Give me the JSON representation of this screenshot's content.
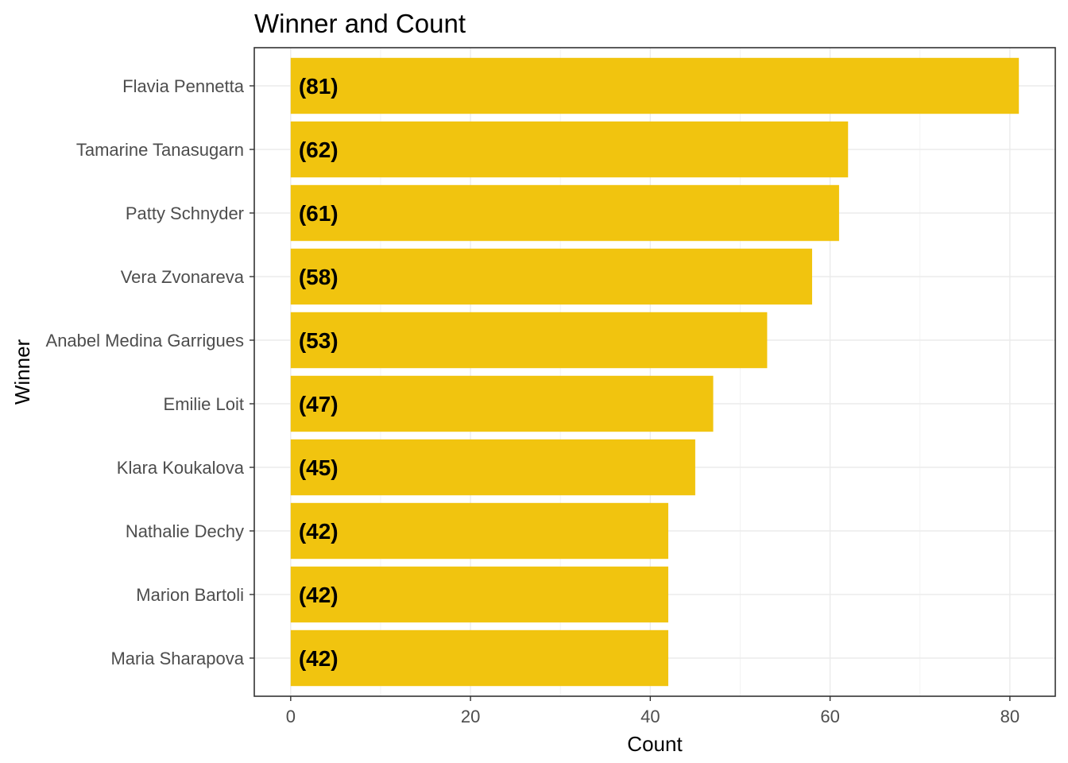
{
  "chart_data": {
    "type": "bar",
    "orientation": "horizontal",
    "title": "Winner and Count",
    "xlabel": "Count",
    "ylabel": "Winner",
    "categories": [
      "Flavia Pennetta",
      "Tamarine Tanasugarn",
      "Patty Schnyder",
      "Vera Zvonareva",
      "Anabel Medina Garrigues",
      "Emilie Loit",
      "Klara Koukalova",
      "Nathalie Dechy",
      "Marion Bartoli",
      "Maria Sharapova"
    ],
    "values": [
      81,
      62,
      61,
      58,
      53,
      47,
      45,
      42,
      42,
      42
    ],
    "data_labels": [
      "(81)",
      "(62)",
      "(61)",
      "(58)",
      "(53)",
      "(47)",
      "(45)",
      "(42)",
      "(42)",
      "(42)"
    ],
    "xlim": [
      -4.05,
      85.05
    ],
    "xticks": [
      0,
      20,
      40,
      60,
      80
    ],
    "grid": true,
    "bar_color": "#F1C40F"
  }
}
